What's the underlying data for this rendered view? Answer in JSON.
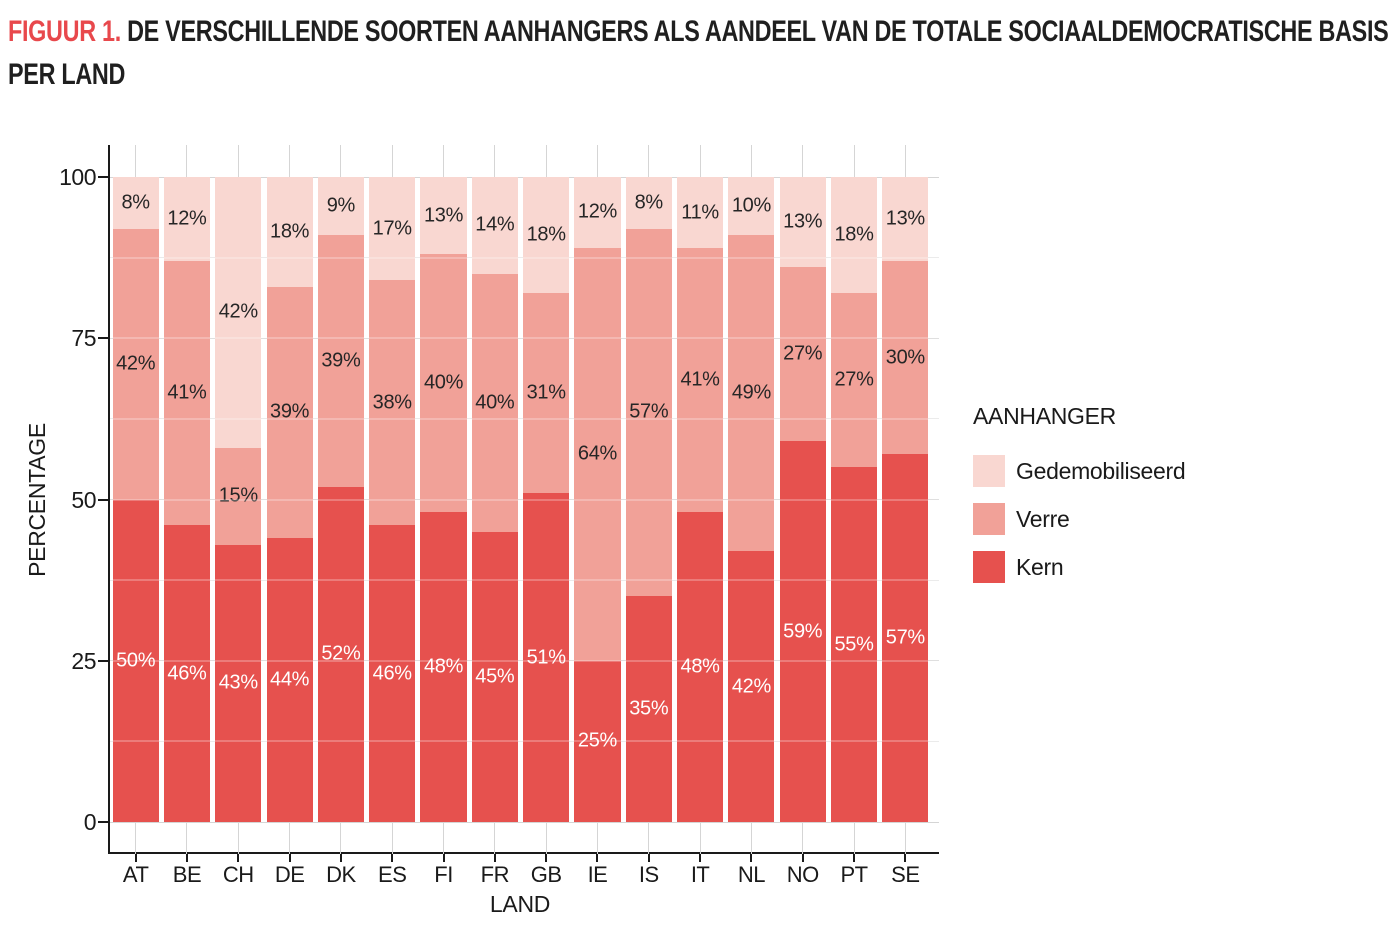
{
  "title": {
    "accent": "FIGUUR 1.",
    "line1": "DE VERSCHILLENDE SOORTEN AANHANGERS ALS AANDEEL VAN DE TOTALE SOCIAALDEMOCRATISCHE BASIS",
    "line2": "PER LAND"
  },
  "colors": {
    "accent_red": "#e8484c",
    "kern": "#e6514e",
    "verre": "#f1a198",
    "gedemobiliseerd": "#f9d7d1",
    "grid_major": "#d5d5d5",
    "grid_minor": "#e4e4e4",
    "axis": "#1a1a1a",
    "label_dark": "#262626",
    "label_light": "#ffffff"
  },
  "chart_data": {
    "type": "bar",
    "stacked": true,
    "percent_stack": true,
    "title": "FIGUUR 1. DE VERSCHILLENDE SOORTEN AANHANGERS ALS AANDEEL VAN DE TOTALE SOCIAALDEMOCRATISCHE BASIS PER LAND",
    "xlabel": "LAND",
    "ylabel": "PERCENTAGE",
    "ylim": [
      0,
      100
    ],
    "yticks": [
      0,
      25,
      50,
      75,
      100
    ],
    "yminor": [
      12.5,
      37.5,
      62.5,
      87.5
    ],
    "grid": true,
    "legend_position": "right",
    "legend_title": "AANHANGER",
    "legend_order": [
      "Gedemobiliseerd",
      "Verre",
      "Kern"
    ],
    "label_suffix": "%",
    "categories": [
      "AT",
      "BE",
      "CH",
      "DE",
      "DK",
      "ES",
      "FI",
      "FR",
      "GB",
      "IE",
      "IS",
      "IT",
      "NL",
      "NO",
      "PT",
      "SE"
    ],
    "series": [
      {
        "name": "Kern",
        "color": "#e6514e",
        "label_color": "#ffffff",
        "values": [
          50,
          46,
          43,
          44,
          52,
          46,
          48,
          45,
          51,
          25,
          35,
          48,
          42,
          59,
          55,
          57
        ]
      },
      {
        "name": "Verre",
        "color": "#f1a198",
        "label_color": "#262626",
        "values": [
          42,
          41,
          15,
          39,
          39,
          38,
          40,
          40,
          31,
          64,
          57,
          41,
          49,
          27,
          27,
          30
        ]
      },
      {
        "name": "Gedemobiliseerd",
        "color": "#f9d7d1",
        "label_color": "#262626",
        "values": [
          8,
          12,
          42,
          18,
          9,
          17,
          13,
          14,
          18,
          12,
          8,
          11,
          10,
          13,
          18,
          13
        ]
      }
    ]
  }
}
